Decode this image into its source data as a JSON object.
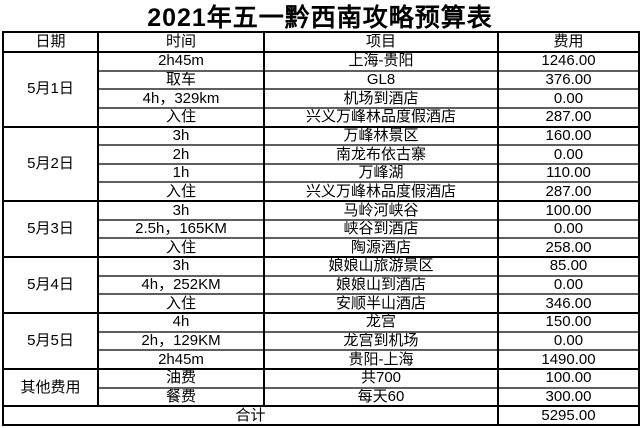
{
  "title": "2021年五一黔西南攻略预算表",
  "table": {
    "headers": [
      "日期",
      "时间",
      "项目",
      "费用"
    ],
    "groups": [
      {
        "date": "5月1日",
        "rows": [
          [
            "2h45m",
            "上海-贵阳",
            "1246.00"
          ],
          [
            "取车",
            "GL8",
            "376.00"
          ],
          [
            "4h，329km",
            "机场到酒店",
            "0.00"
          ],
          [
            "入住",
            "兴义万峰林品度假酒店",
            "287.00"
          ]
        ]
      },
      {
        "date": "5月2日",
        "rows": [
          [
            "3h",
            "万峰林景区",
            "160.00"
          ],
          [
            "2h",
            "南龙布依古寨",
            "0.00"
          ],
          [
            "1h",
            "万峰湖",
            "110.00"
          ],
          [
            "入住",
            "兴义万峰林品度假酒店",
            "287.00"
          ]
        ]
      },
      {
        "date": "5月3日",
        "rows": [
          [
            "3h",
            "马岭河峡谷",
            "100.00"
          ],
          [
            "2.5h，165KM",
            "峡谷到酒店",
            "0.00"
          ],
          [
            "入住",
            "陶源酒店",
            "258.00"
          ]
        ]
      },
      {
        "date": "5月4日",
        "rows": [
          [
            "3h",
            "娘娘山旅游景区",
            "85.00"
          ],
          [
            "4h，252KM",
            "娘娘山到酒店",
            "0.00"
          ],
          [
            "入住",
            "安顺半山酒店",
            "346.00"
          ]
        ]
      },
      {
        "date": "5月5日",
        "rows": [
          [
            "4h",
            "龙宫",
            "150.00"
          ],
          [
            "2h，129KM",
            "龙宫到机场",
            "0.00"
          ],
          [
            "2h45m",
            "贵阳-上海",
            "1490.00"
          ]
        ]
      },
      {
        "date": "其他费用",
        "rows": [
          [
            "油费",
            "共700",
            "100.00"
          ],
          [
            "餐费",
            "每天60",
            "300.00"
          ]
        ]
      }
    ],
    "total_label": "合计",
    "total_value": "5295.00"
  },
  "colors": {
    "background": "#ffffff",
    "text": "#000000",
    "grid_strong": "#000000",
    "grid_inner": "#5f5f5f"
  }
}
